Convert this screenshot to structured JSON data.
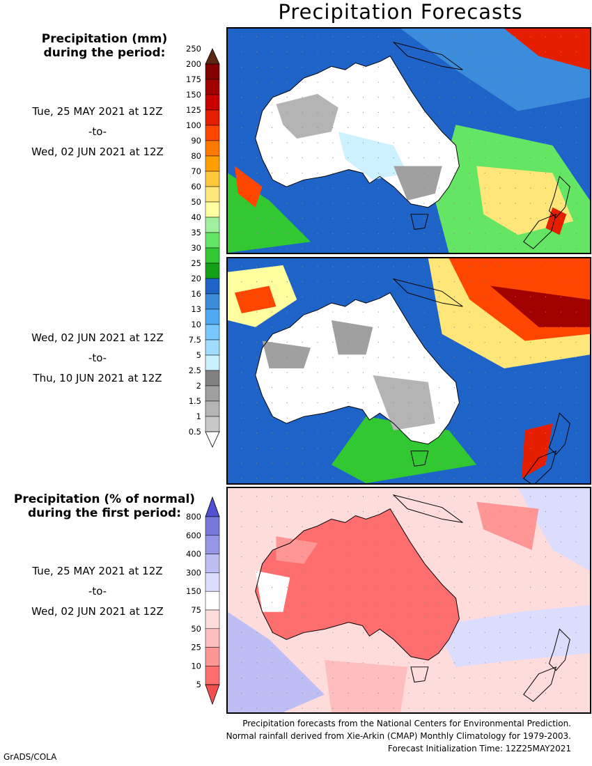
{
  "title": "Precipitation Forecasts",
  "legend_mm": {
    "heading_line1": "Precipitation (mm)",
    "heading_line2": "during the period:",
    "levels": [
      "0.5",
      "1",
      "1.5",
      "2",
      "2.5",
      "5",
      "7.5",
      "10",
      "13",
      "16",
      "20",
      "25",
      "30",
      "35",
      "40",
      "50",
      "60",
      "70",
      "80",
      "90",
      "100",
      "125",
      "150",
      "175",
      "200",
      "250"
    ],
    "colors": [
      "#ffffff",
      "#c8c8c8",
      "#b4b4b4",
      "#a0a0a0",
      "#828282",
      "#c8f0ff",
      "#a0dcff",
      "#78c8ff",
      "#50aaf5",
      "#3c8cdc",
      "#1e64c8",
      "#14a014",
      "#32c832",
      "#64e664",
      "#a0f0a0",
      "#ffffa0",
      "#ffe678",
      "#ffc83c",
      "#ffa000",
      "#ff7800",
      "#ff4600",
      "#e61e00",
      "#c80000",
      "#a00000",
      "#820000",
      "#5a2814"
    ]
  },
  "legend_pct": {
    "heading_line1": "Precipitation (% of normal)",
    "heading_line2": "during the first period:",
    "levels": [
      "5",
      "10",
      "25",
      "50",
      "75",
      "150",
      "300",
      "400",
      "600",
      "800"
    ],
    "colors": [
      "#f05050",
      "#ff6e6e",
      "#ff9696",
      "#ffbebe",
      "#ffdcdc",
      "#ffffff",
      "#dcdcff",
      "#bebef5",
      "#9696e6",
      "#7878dc",
      "#5050d2"
    ]
  },
  "periods": [
    {
      "start": "Tue, 25 MAY 2021 at 12Z",
      "sep": "-to-",
      "end": "Wed, 02 JUN 2021 at 12Z"
    },
    {
      "start": "Wed, 02 JUN 2021 at 12Z",
      "sep": "-to-",
      "end": "Thu, 10 JUN 2021 at 12Z"
    },
    {
      "start": "Tue, 25 MAY 2021 at 12Z",
      "sep": "-to-",
      "end": "Wed, 02 JUN 2021 at 12Z"
    }
  ],
  "footer": {
    "line1": "Precipitation forecasts from the National Centers for Environmental Prediction.",
    "line2": "Normal rainfall derived from Xie-Arkin (CMAP) Monthly Climatology for 1979-2003.",
    "line3": "Forecast Initialization Time: 12Z25MAY2021"
  },
  "credit": "GrADS/COLA"
}
